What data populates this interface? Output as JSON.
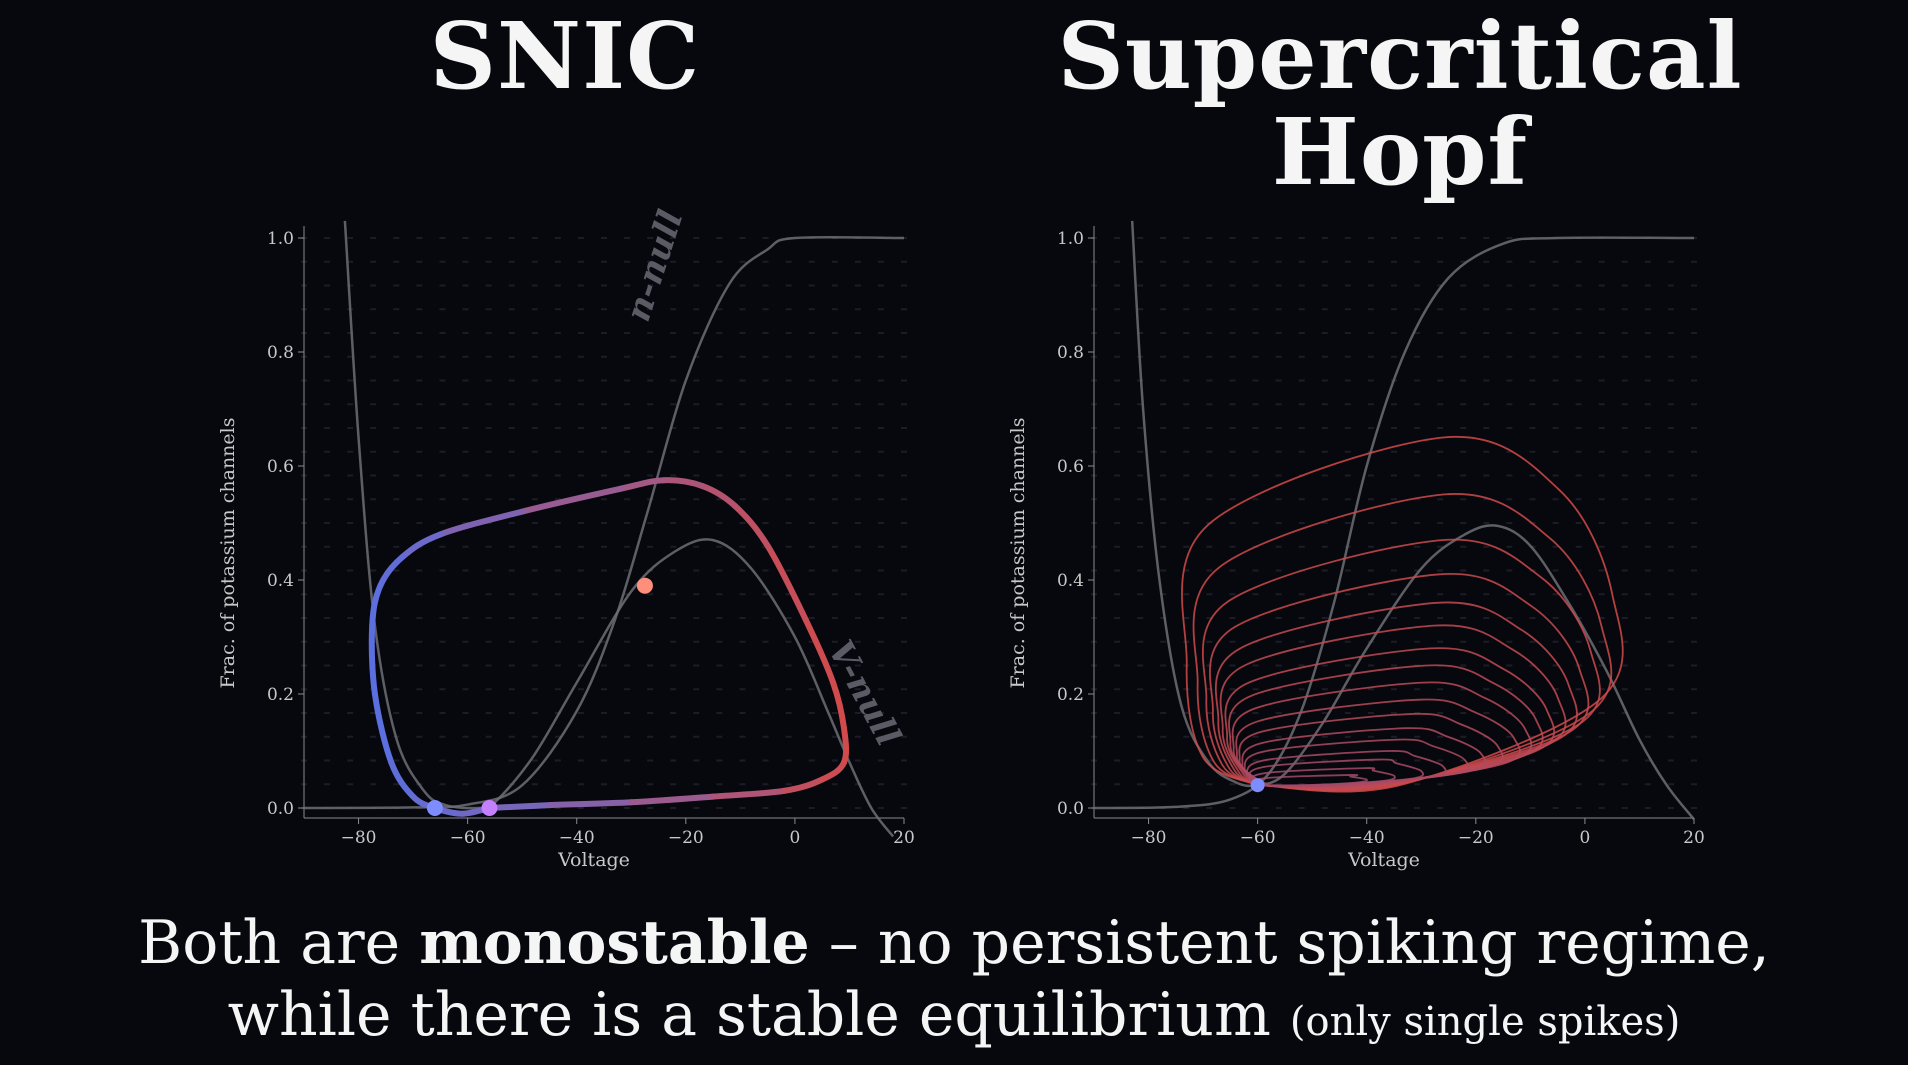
{
  "titles": {
    "left": "SNIC",
    "right_line1": "Supercritical",
    "right_line2": "Hopf"
  },
  "caption": {
    "line1_pre": "Both are ",
    "line1_bold": "monostable",
    "line1_post": " – no persistent spiking regime,",
    "line2_main": "while there is a stable equilibrium ",
    "line2_small": "(only single spikes)"
  },
  "colors": {
    "background": "#07080d",
    "nullcline": "#6d6d75",
    "cycle_start": "#5a6fe0",
    "cycle_end": "#d24a4a",
    "stable_point": "#7d8cff",
    "saddle_point": "#c580ff",
    "unstable_point": "#ff8f7a"
  },
  "chart_data": [
    {
      "type": "line",
      "title": "SNIC",
      "xlabel": "Voltage",
      "ylabel": "Frac. of potassium channels",
      "xlim": [
        -90,
        20
      ],
      "ylim": [
        0,
        1.0
      ],
      "xticks": [
        "−80",
        "−60",
        "−40",
        "−20",
        "0",
        "20"
      ],
      "xtick_values": [
        -80,
        -60,
        -40,
        -20,
        0,
        20
      ],
      "yticks": [
        "0.0",
        "0.2",
        "0.4",
        "0.6",
        "0.8",
        "1.0"
      ],
      "ytick_values": [
        0,
        0.2,
        0.4,
        0.6,
        0.8,
        1.0
      ],
      "annotations": [
        {
          "text": "n-null",
          "x": -27,
          "y": 0.85,
          "angle": -72
        },
        {
          "text": "V-null",
          "x": 6,
          "y": 0.28,
          "angle": 62
        }
      ],
      "n_nullcline": [
        [
          -90,
          0.0
        ],
        [
          -70,
          0.001
        ],
        [
          -60,
          0.006
        ],
        [
          -50,
          0.04
        ],
        [
          -40,
          0.17
        ],
        [
          -33,
          0.33
        ],
        [
          -27,
          0.52
        ],
        [
          -20,
          0.75
        ],
        [
          -12,
          0.92
        ],
        [
          -5,
          0.98
        ],
        [
          0,
          1.0
        ],
        [
          20,
          1.0
        ]
      ],
      "v_nullcline": [
        [
          -82.5,
          1.03
        ],
        [
          -80,
          0.65
        ],
        [
          -77,
          0.32
        ],
        [
          -73,
          0.12
        ],
        [
          -68,
          0.03
        ],
        [
          -64,
          0.005
        ],
        [
          -58,
          0.0
        ],
        [
          -55,
          0.01
        ],
        [
          -48,
          0.09
        ],
        [
          -40,
          0.22
        ],
        [
          -30,
          0.38
        ],
        [
          -22,
          0.45
        ],
        [
          -15,
          0.47
        ],
        [
          -8,
          0.42
        ],
        [
          0,
          0.3
        ],
        [
          6,
          0.17
        ],
        [
          10,
          0.08
        ],
        [
          14,
          0.0
        ],
        [
          18,
          -0.05
        ]
      ],
      "limit_cycle": [
        [
          -56,
          0.0
        ],
        [
          -45,
          0.005
        ],
        [
          -30,
          0.01
        ],
        [
          -15,
          0.02
        ],
        [
          -2,
          0.03
        ],
        [
          5,
          0.05
        ],
        [
          9,
          0.08
        ],
        [
          9,
          0.14
        ],
        [
          7,
          0.22
        ],
        [
          2,
          0.33
        ],
        [
          -5,
          0.46
        ],
        [
          -11,
          0.53
        ],
        [
          -17,
          0.565
        ],
        [
          -24,
          0.575
        ],
        [
          -32,
          0.56
        ],
        [
          -50,
          0.52
        ],
        [
          -65,
          0.48
        ],
        [
          -72,
          0.44
        ],
        [
          -76,
          0.39
        ],
        [
          -77.5,
          0.32
        ],
        [
          -77,
          0.2
        ],
        [
          -74,
          0.08
        ],
        [
          -70,
          0.02
        ],
        [
          -66,
          0.0
        ],
        [
          -61,
          -0.01
        ],
        [
          -56,
          0.0
        ]
      ],
      "points": [
        {
          "label": "stable",
          "x": -66,
          "y": 0.0
        },
        {
          "label": "saddle",
          "x": -56,
          "y": 0.0
        },
        {
          "label": "unstable",
          "x": -27.5,
          "y": 0.39
        }
      ]
    },
    {
      "type": "line",
      "title": "Supercritical Hopf",
      "xlabel": "Voltage",
      "ylabel": "Frac. of potassium channels",
      "xlim": [
        -90,
        20
      ],
      "ylim": [
        0,
        1.0
      ],
      "xticks": [
        "−80",
        "−60",
        "−40",
        "−20",
        "0",
        "20"
      ],
      "xtick_values": [
        -80,
        -60,
        -40,
        -20,
        0,
        20
      ],
      "yticks": [
        "0.0",
        "0.2",
        "0.4",
        "0.6",
        "0.8",
        "1.0"
      ],
      "ytick_values": [
        0,
        0.2,
        0.4,
        0.6,
        0.8,
        1.0
      ],
      "n_nullcline": [
        [
          -90,
          0.0
        ],
        [
          -75,
          0.002
        ],
        [
          -65,
          0.015
        ],
        [
          -58,
          0.06
        ],
        [
          -52,
          0.17
        ],
        [
          -46,
          0.36
        ],
        [
          -40,
          0.6
        ],
        [
          -33,
          0.8
        ],
        [
          -25,
          0.93
        ],
        [
          -15,
          0.99
        ],
        [
          -5,
          1.0
        ],
        [
          20,
          1.0
        ]
      ],
      "v_nullcline": [
        [
          -83,
          1.03
        ],
        [
          -81,
          0.7
        ],
        [
          -78,
          0.4
        ],
        [
          -74,
          0.18
        ],
        [
          -69,
          0.08
        ],
        [
          -64,
          0.045
        ],
        [
          -60,
          0.04
        ],
        [
          -55,
          0.06
        ],
        [
          -48,
          0.15
        ],
        [
          -40,
          0.28
        ],
        [
          -30,
          0.42
        ],
        [
          -22,
          0.48
        ],
        [
          -16,
          0.495
        ],
        [
          -10,
          0.46
        ],
        [
          -3,
          0.36
        ],
        [
          4,
          0.24
        ],
        [
          10,
          0.12
        ],
        [
          15,
          0.04
        ],
        [
          20,
          -0.02
        ]
      ],
      "equilibrium": {
        "x": -60,
        "y": 0.04
      },
      "trajectories": [
        {
          "vmax": 5,
          "nmax": 0.65
        },
        {
          "vmax": 3,
          "nmax": 0.55
        },
        {
          "vmax": 1,
          "nmax": 0.47
        },
        {
          "vmax": -1,
          "nmax": 0.41
        },
        {
          "vmax": -3,
          "nmax": 0.36
        },
        {
          "vmax": -5,
          "nmax": 0.32
        },
        {
          "vmax": -7,
          "nmax": 0.28
        },
        {
          "vmax": -9,
          "nmax": 0.25
        },
        {
          "vmax": -11,
          "nmax": 0.22
        },
        {
          "vmax": -13,
          "nmax": 0.19
        },
        {
          "vmax": -16,
          "nmax": 0.165
        },
        {
          "vmax": -19,
          "nmax": 0.14
        },
        {
          "vmax": -22,
          "nmax": 0.12
        },
        {
          "vmax": -26,
          "nmax": 0.1
        },
        {
          "vmax": -30,
          "nmax": 0.085
        },
        {
          "vmax": -35,
          "nmax": 0.07
        },
        {
          "vmax": -40,
          "nmax": 0.058
        }
      ]
    }
  ]
}
